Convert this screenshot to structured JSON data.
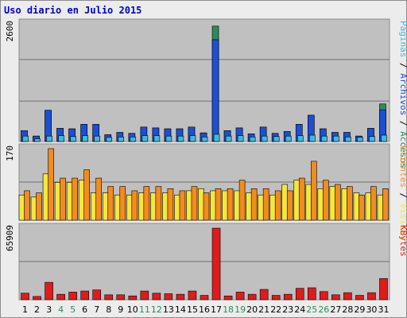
{
  "chart_data": {
    "type": "bar",
    "title": "Uso diario en Julio 2015",
    "categories": [
      "1",
      "2",
      "3",
      "4",
      "5",
      "6",
      "7",
      "8",
      "9",
      "10",
      "11",
      "12",
      "13",
      "14",
      "15",
      "16",
      "17",
      "18",
      "19",
      "20",
      "21",
      "22",
      "23",
      "24",
      "25",
      "26",
      "27",
      "28",
      "29",
      "30",
      "31"
    ],
    "weekend_days": [
      "4",
      "5",
      "11",
      "12",
      "18",
      "19",
      "25",
      "26"
    ],
    "colors": {
      "accesos": "#2d8a5c",
      "archivos": "#1c4fd6",
      "paginas": "#3fb9dc",
      "visitas": "#f5e73c",
      "clientes": "#f28c1e",
      "kbytes": "#e01b1b",
      "weekday_label": "#000000",
      "weekend_label": "#2d8a5c",
      "panel_bg": "#c0c0c0",
      "gridline": "#707070"
    },
    "panels": [
      {
        "id": "top",
        "ymax_label": "2600",
        "ylim": [
          0,
          2600
        ],
        "legend": [
          {
            "text": "Accesos",
            "color": "#2d8a5c"
          },
          {
            "text": "Archivos",
            "color": "#1c4fd6"
          },
          {
            "text": "Páginas",
            "color": "#3fb9dc"
          }
        ],
        "series": [
          {
            "name": "Accesos",
            "values": [
              240,
              120,
              690,
              290,
              280,
              380,
              380,
              150,
              200,
              180,
              320,
              300,
              280,
              280,
              320,
              190,
              2550,
              240,
              300,
              170,
              320,
              180,
              220,
              380,
              580,
              280,
              200,
              200,
              120,
              290,
              830
            ]
          },
          {
            "name": "Archivos",
            "values": [
              240,
              120,
              690,
              290,
              280,
              380,
              380,
              150,
              200,
              180,
              320,
              300,
              280,
              280,
              320,
              190,
              2250,
              240,
              300,
              170,
              320,
              180,
              220,
              380,
              580,
              280,
              200,
              200,
              120,
              290,
              700
            ]
          },
          {
            "name": "Páginas",
            "values": [
              120,
              60,
              120,
              130,
              110,
              130,
              120,
              90,
              100,
              100,
              130,
              130,
              120,
              120,
              130,
              100,
              160,
              120,
              130,
              100,
              120,
              110,
              120,
              130,
              140,
              120,
              120,
              100,
              90,
              110,
              140
            ]
          }
        ]
      },
      {
        "id": "middle",
        "ymax_label": "170",
        "ylim": [
          0,
          170
        ],
        "legend": [
          {
            "text": "Visitas",
            "color": "#f5e73c"
          },
          {
            "text": "Clientes",
            "color": "#f28c1e"
          }
        ],
        "series": [
          {
            "name": "Visitas",
            "values": [
              60,
              55,
              110,
              90,
              90,
              95,
              65,
              65,
              60,
              60,
              65,
              65,
              65,
              60,
              70,
              75,
              70,
              70,
              70,
              65,
              60,
              60,
              85,
              95,
              85,
              75,
              80,
              75,
              65,
              65,
              60
            ]
          },
          {
            "name": "Clientes",
            "values": [
              70,
              65,
              170,
              100,
              100,
              120,
              100,
              80,
              80,
              70,
              80,
              80,
              75,
              70,
              80,
              65,
              75,
              75,
              95,
              75,
              75,
              70,
              70,
              100,
              140,
              95,
              85,
              80,
              60,
              80,
              75
            ]
          }
        ]
      },
      {
        "id": "bottom",
        "ymax_label": "65909",
        "ylim": [
          0,
          65909
        ],
        "legend": [
          {
            "text": "KBytes",
            "color": "#e01b1b"
          }
        ],
        "series": [
          {
            "name": "KBytes",
            "values": [
              6000,
              3000,
              16000,
              5000,
              7000,
              8000,
              9000,
              4500,
              4500,
              3500,
              8000,
              6000,
              5500,
              5000,
              8000,
              4000,
              65909,
              3500,
              7000,
              5000,
              9500,
              4000,
              5000,
              10500,
              11000,
              7500,
              4500,
              6500,
              4000,
              6500,
              19500
            ]
          }
        ]
      }
    ]
  }
}
